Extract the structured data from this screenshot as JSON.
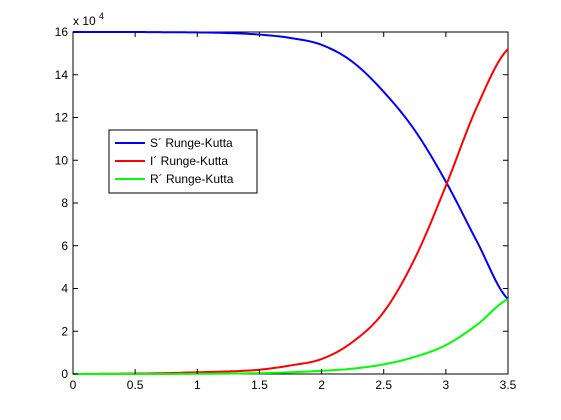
{
  "chart_data": {
    "type": "line",
    "title": "",
    "xlabel": "",
    "ylabel": "",
    "xlim": [
      0,
      3.5
    ],
    "ylim": [
      0,
      16
    ],
    "x_ticks": [
      0,
      0.5,
      1,
      1.5,
      2,
      2.5,
      3,
      3.5
    ],
    "y_ticks": [
      0,
      2,
      4,
      6,
      8,
      10,
      12,
      14,
      16
    ],
    "x_tick_labels": [
      "0",
      "0.5",
      "1",
      "1.5",
      "2",
      "2.5",
      "3",
      "3.5"
    ],
    "y_tick_labels": [
      "0",
      "2",
      "4",
      "6",
      "8",
      "10",
      "12",
      "14",
      "16"
    ],
    "y_multiplier_base": "x 10",
    "y_multiplier_exponent": "4",
    "grid": false,
    "legend_placement": "upper-left",
    "x": [
      0,
      0.25,
      0.5,
      0.75,
      1,
      1.25,
      1.5,
      1.75,
      2,
      2.25,
      2.5,
      2.75,
      3,
      3.25,
      3.5
    ],
    "series": [
      {
        "name": "S´ Runge-Kutta",
        "color": "#0000ff",
        "values": [
          16.0,
          16.0,
          16.0,
          15.99,
          15.98,
          15.95,
          15.88,
          15.72,
          15.4,
          14.6,
          13.2,
          11.4,
          9.0,
          6.2,
          3.5
        ]
      },
      {
        "name": "I´ Runge-Kutta",
        "color": "#ff0000",
        "values": [
          0.0,
          0.01,
          0.02,
          0.04,
          0.08,
          0.12,
          0.2,
          0.4,
          0.7,
          1.5,
          2.9,
          5.4,
          8.8,
          12.5,
          15.2
        ]
      },
      {
        "name": "R´ Runge-Kutta",
        "color": "#00ff00",
        "values": [
          0.0,
          0.0,
          0.0,
          0.0,
          0.01,
          0.02,
          0.04,
          0.08,
          0.15,
          0.25,
          0.45,
          0.8,
          1.35,
          2.3,
          3.5
        ]
      }
    ]
  }
}
